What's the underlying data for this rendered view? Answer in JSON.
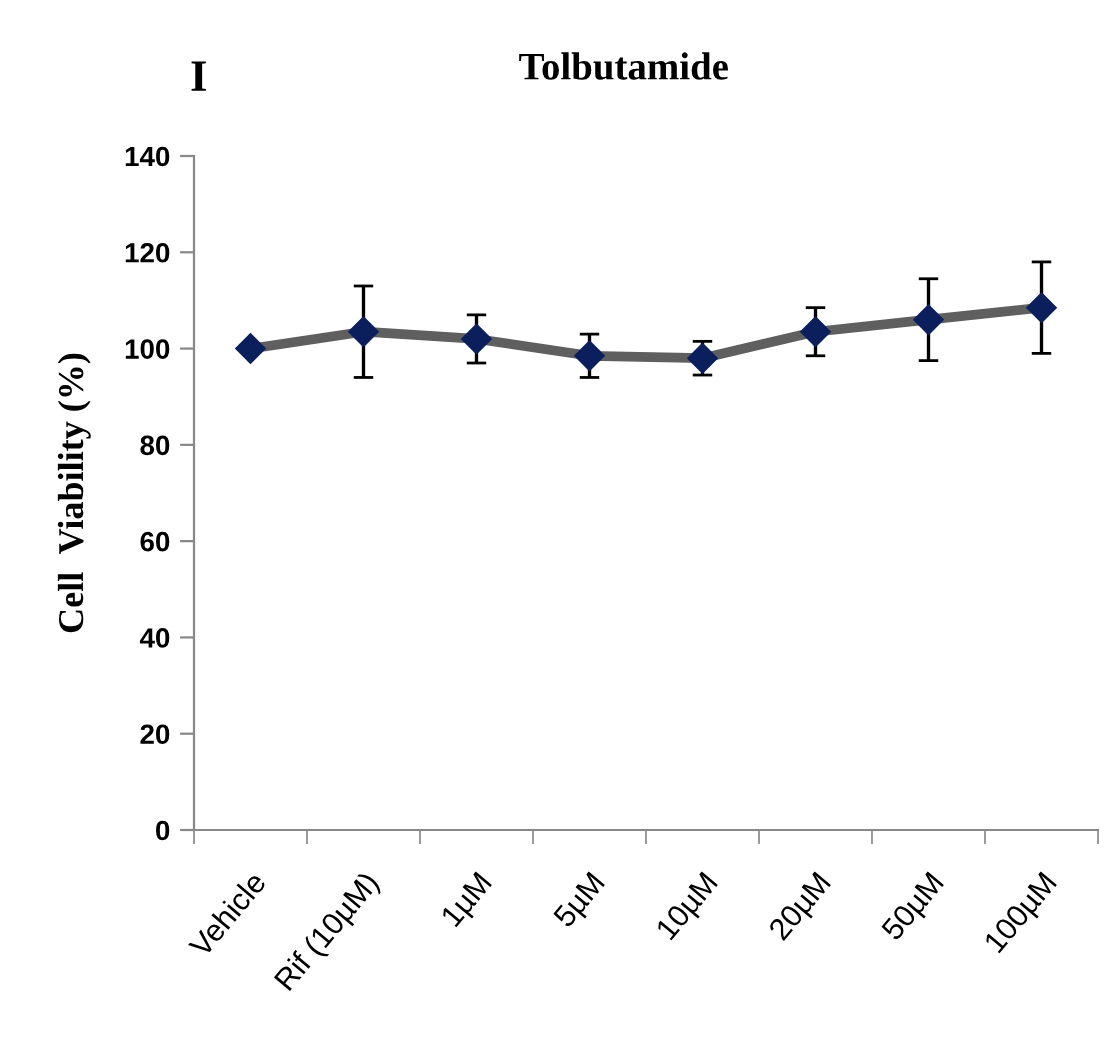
{
  "chart_data": {
    "type": "line",
    "title": "Tolbutamide",
    "ylabel": "Cell  Viability (%)",
    "annotations": [
      "I"
    ],
    "categories": [
      "Vehicle",
      "Rif (10µM)",
      "1µM",
      "5µM",
      "10µM",
      "20µM",
      "50µM",
      "100µM"
    ],
    "series": [
      {
        "color": "#5f5f5f",
        "values": [
          100,
          103.5,
          102,
          98.5,
          98,
          103.5,
          106,
          108.5
        ],
        "errors": [
          null,
          9.5,
          5,
          4.5,
          3.5,
          5,
          8.5,
          9.5
        ]
      }
    ],
    "marker": "diamond",
    "line_style": "solid",
    "grid": false,
    "legend": false,
    "ylim": [
      0,
      140
    ],
    "yticks": [
      0,
      20,
      40,
      60,
      80,
      100,
      120,
      140
    ]
  }
}
